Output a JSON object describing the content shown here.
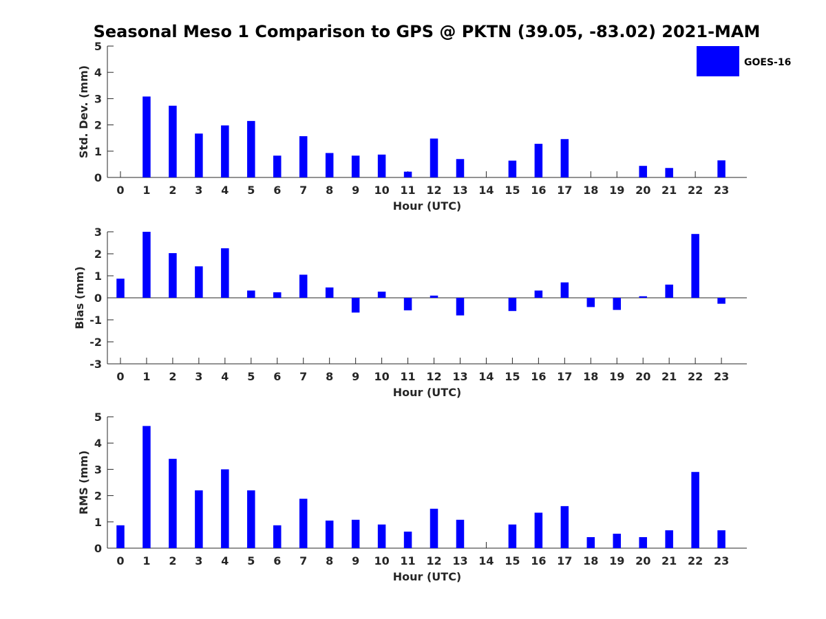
{
  "title": "Seasonal Meso 1 Comparison to GPS @ PKTN (39.05, -83.02) 2021-MAM",
  "legend": {
    "label": "GOES-16",
    "color": "#0000ff",
    "placement": "top-right"
  },
  "chart_data": [
    {
      "type": "bar",
      "xlabel": "Hour (UTC)",
      "ylabel": "Std. Dev. (mm)",
      "ylim": [
        0,
        5
      ],
      "yticks": [
        "0",
        "1",
        "2",
        "3",
        "4",
        "5"
      ],
      "categories": [
        "0",
        "1",
        "2",
        "3",
        "4",
        "5",
        "6",
        "7",
        "8",
        "9",
        "10",
        "11",
        "12",
        "13",
        "14",
        "15",
        "16",
        "17",
        "18",
        "19",
        "20",
        "21",
        "22",
        "23"
      ],
      "values": [
        0,
        3.08,
        2.73,
        1.67,
        1.98,
        2.15,
        0.83,
        1.57,
        0.93,
        0.83,
        0.87,
        0.22,
        1.48,
        0.7,
        0,
        0.64,
        1.28,
        1.46,
        0,
        0,
        0.44,
        0.36,
        0,
        0.65
      ],
      "grid": false
    },
    {
      "type": "bar",
      "xlabel": "Hour (UTC)",
      "ylabel": "Bias (mm)",
      "ylim": [
        -3,
        3
      ],
      "yticks": [
        "-3",
        "-2",
        "-1",
        "0",
        "1",
        "2",
        "3"
      ],
      "categories": [
        "0",
        "1",
        "2",
        "3",
        "4",
        "5",
        "6",
        "7",
        "8",
        "9",
        "10",
        "11",
        "12",
        "13",
        "14",
        "15",
        "16",
        "17",
        "18",
        "19",
        "20",
        "21",
        "22",
        "23"
      ],
      "values": [
        0.87,
        3.0,
        2.03,
        1.43,
        2.25,
        0.33,
        0.25,
        1.05,
        0.47,
        -0.67,
        0.28,
        -0.57,
        0.1,
        -0.8,
        0,
        -0.6,
        0.33,
        0.7,
        -0.42,
        -0.55,
        0.07,
        0.6,
        2.9,
        -0.27
      ],
      "grid": false
    },
    {
      "type": "bar",
      "xlabel": "Hour (UTC)",
      "ylabel": "RMS (mm)",
      "ylim": [
        0,
        5
      ],
      "yticks": [
        "0",
        "1",
        "2",
        "3",
        "4",
        "5"
      ],
      "categories": [
        "0",
        "1",
        "2",
        "3",
        "4",
        "5",
        "6",
        "7",
        "8",
        "9",
        "10",
        "11",
        "12",
        "13",
        "14",
        "15",
        "16",
        "17",
        "18",
        "19",
        "20",
        "21",
        "22",
        "23"
      ],
      "values": [
        0.87,
        4.65,
        3.4,
        2.2,
        3.0,
        2.2,
        0.87,
        1.88,
        1.05,
        1.08,
        0.9,
        0.63,
        1.5,
        1.08,
        0,
        0.9,
        1.35,
        1.6,
        0.42,
        0.55,
        0.42,
        0.68,
        2.9,
        0.68
      ],
      "grid": false
    }
  ]
}
